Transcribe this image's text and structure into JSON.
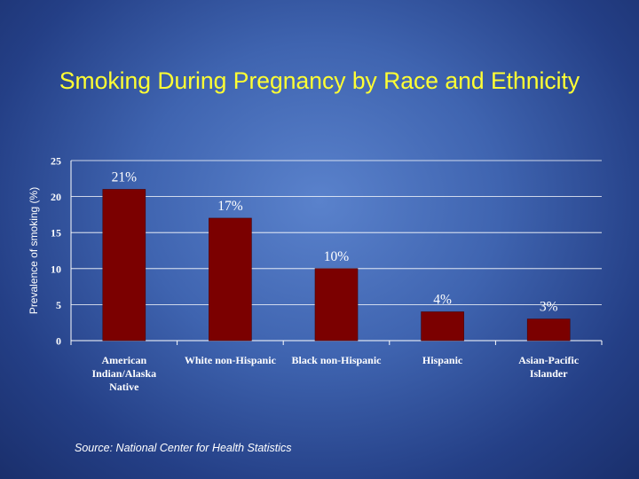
{
  "slide": {
    "title": "Smoking During Pregnancy by Race and Ethnicity",
    "source": "Source:  National Center for Health Statistics"
  },
  "colors": {
    "bar": "#7b0000",
    "text": "#ffffff",
    "title": "#ffff33",
    "grid": "#ffffff"
  },
  "chart_data": {
    "type": "bar",
    "categories": [
      "American Indian/Alaska Native",
      "White non-Hispanic",
      "Black non-Hispanic",
      "Hispanic",
      "Asian-Pacific Islander"
    ],
    "category_lines": [
      [
        "American",
        "Indian/Alaska",
        "Native"
      ],
      [
        "White non-Hispanic"
      ],
      [
        "Black non-Hispanic"
      ],
      [
        "Hispanic"
      ],
      [
        "Asian-Pacific",
        "Islander"
      ]
    ],
    "values": [
      21,
      17,
      10,
      4,
      3
    ],
    "data_labels": [
      "21%",
      "17%",
      "10%",
      "4%",
      "3%"
    ],
    "ylabel": "Prevalence of smoking (%)",
    "xlabel": "",
    "ylim": [
      0,
      25
    ],
    "yticks": [
      0,
      5,
      10,
      15,
      20,
      25
    ],
    "grid": true
  }
}
